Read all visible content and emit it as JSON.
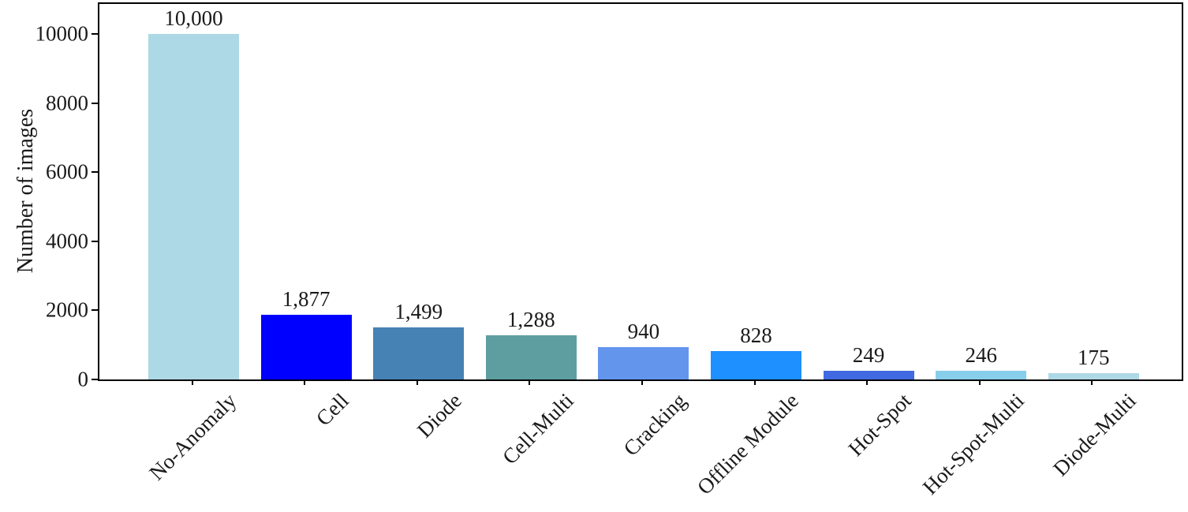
{
  "chart_data": {
    "type": "bar",
    "title": "",
    "xlabel": "",
    "ylabel": "Number of images",
    "categories": [
      "No-Anomaly",
      "Cell",
      "Diode",
      "Cell-Multi",
      "Cracking",
      "Offline Module",
      "Hot-Spot",
      "Hot-Spot-Multi",
      "Diode-Multi"
    ],
    "values": [
      10000,
      1877,
      1499,
      1288,
      940,
      828,
      249,
      246,
      175
    ],
    "value_labels": [
      "10,000",
      "1,877",
      "1,499",
      "1,288",
      "940",
      "828",
      "249",
      "246",
      "175"
    ],
    "bar_colors": [
      "#ADD8E6",
      "#0000FF",
      "#4682B4",
      "#5F9EA0",
      "#6495ED",
      "#1E90FF",
      "#4169E1",
      "#87CEEB",
      "#ADD8E6"
    ],
    "yticks": [
      0,
      2000,
      4000,
      6000,
      8000,
      10000
    ],
    "ytick_labels": [
      "0",
      "2000",
      "4000",
      "6000",
      "8000",
      "10000"
    ],
    "ylim": [
      0,
      10900
    ],
    "grid": false,
    "legend": null,
    "axis_color": "#000000",
    "text_color": "#1a1a1a",
    "background_color": "#ffffff"
  }
}
